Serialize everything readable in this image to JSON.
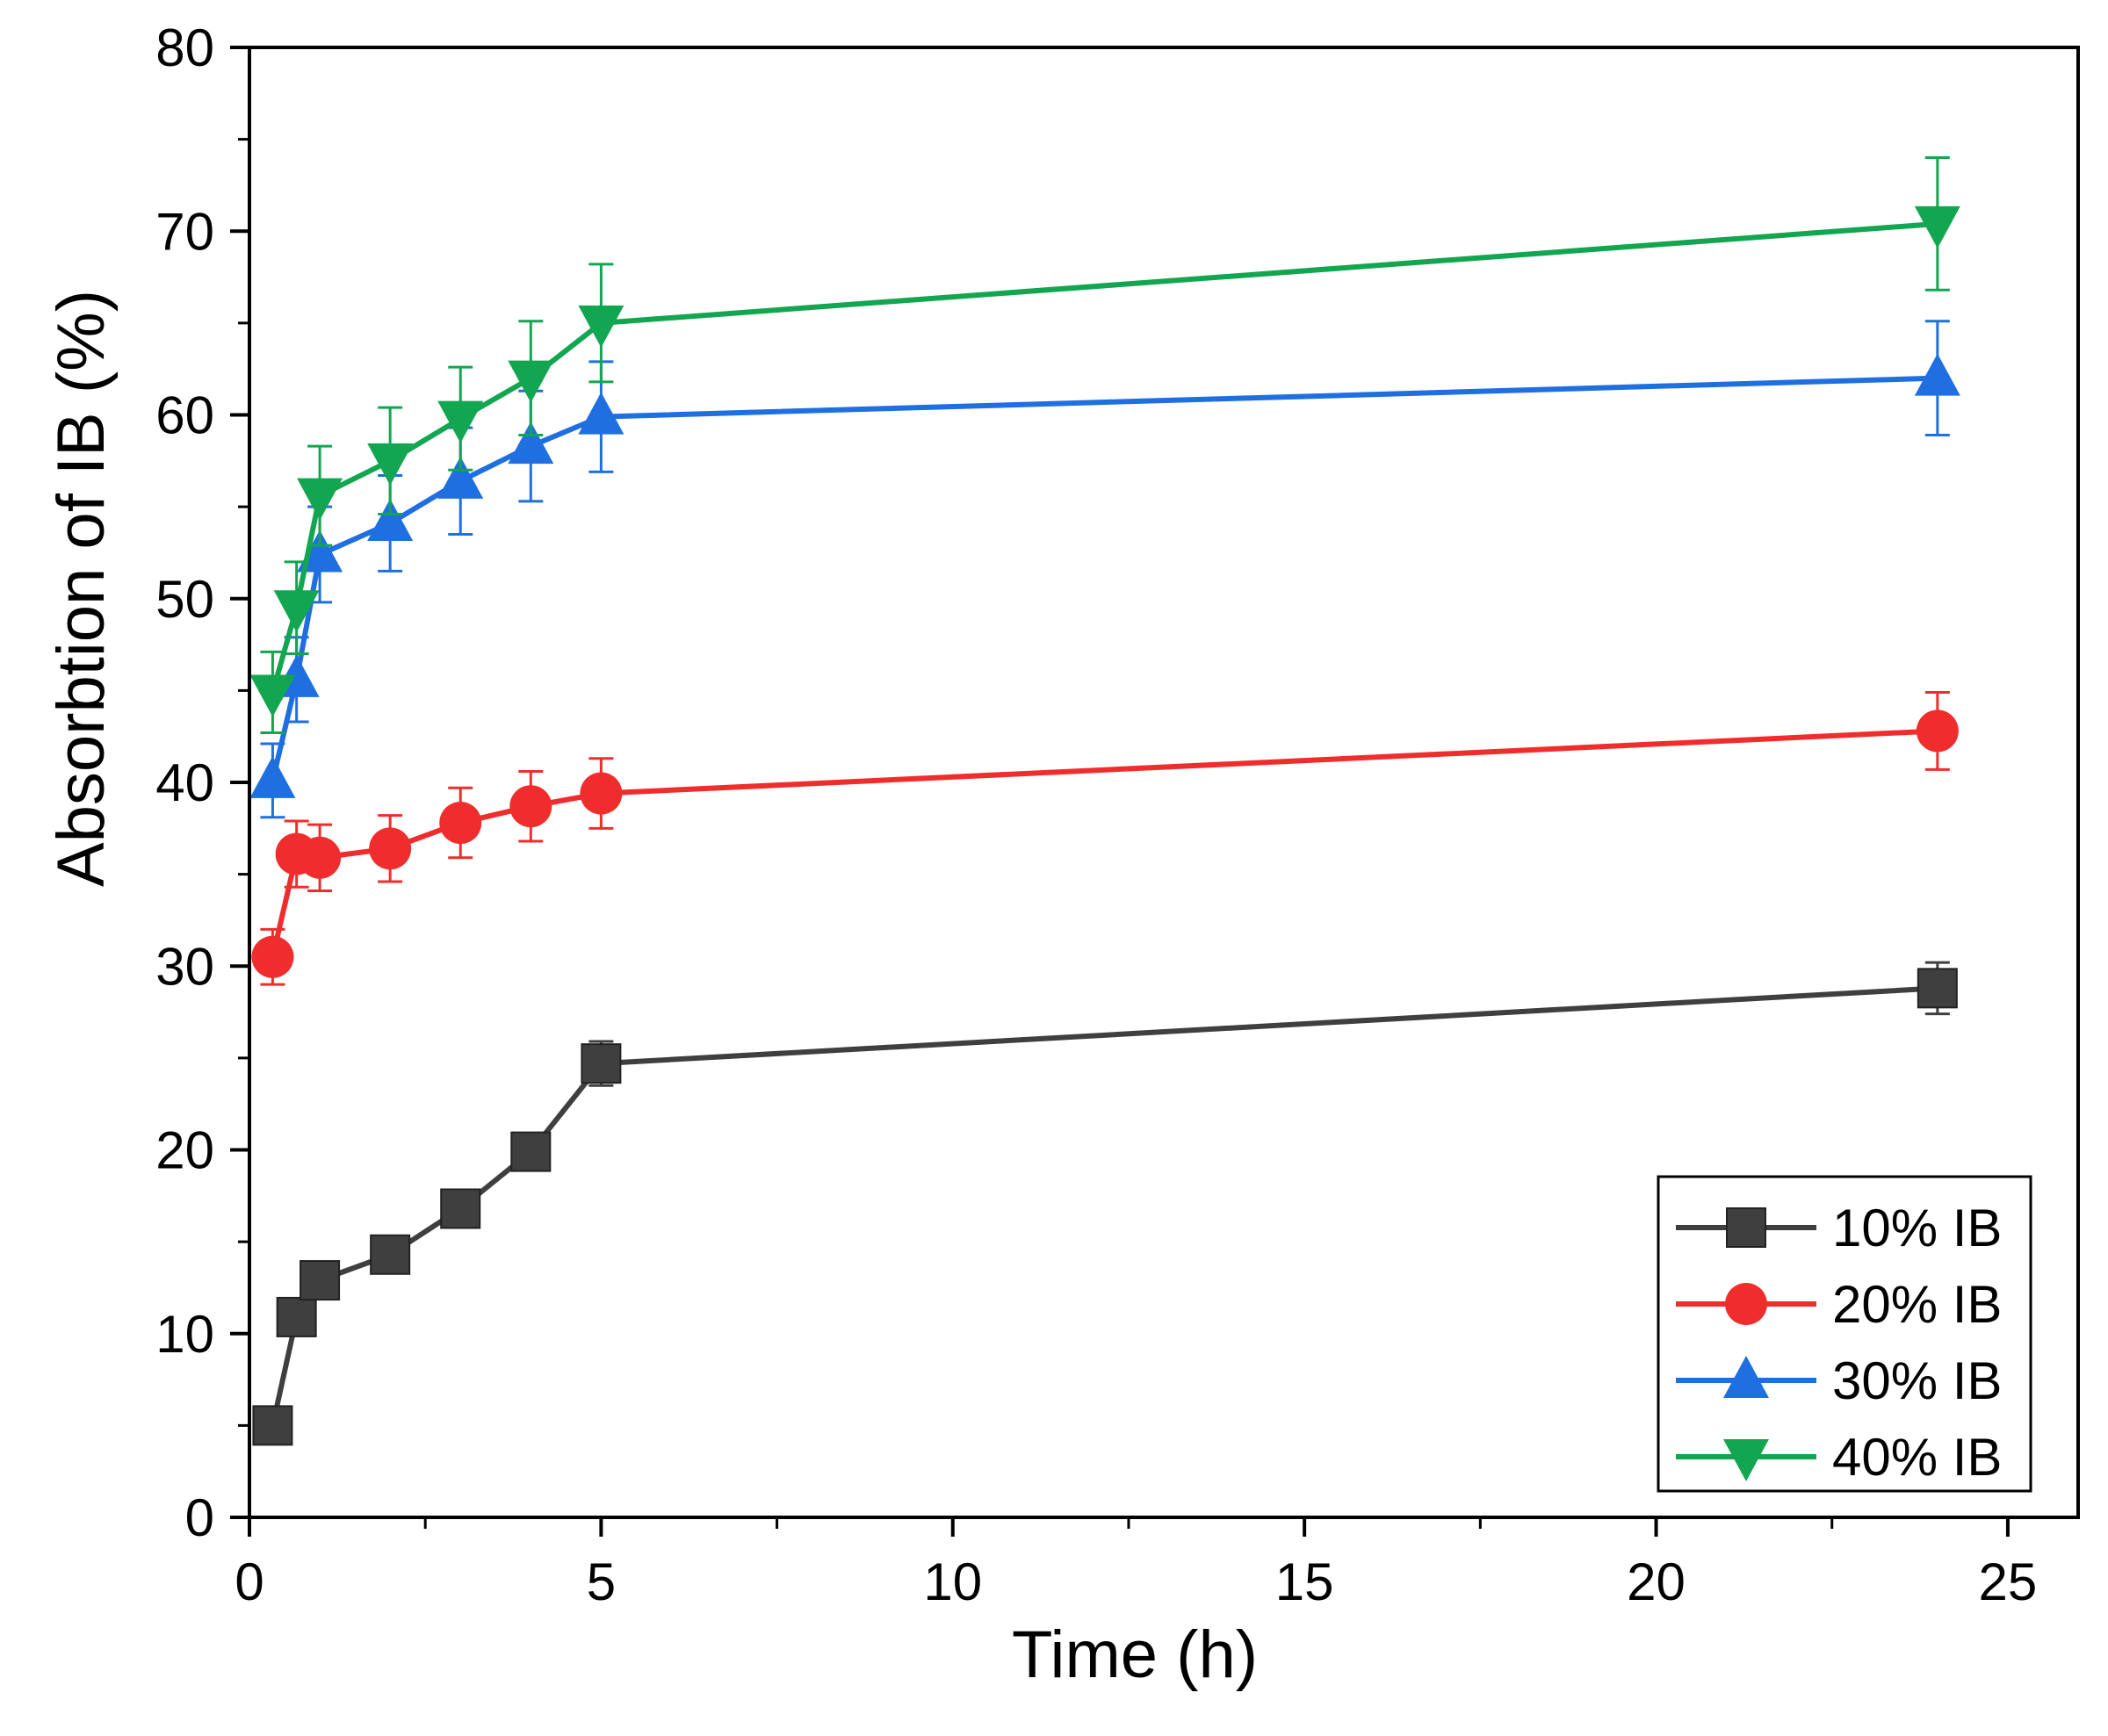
{
  "chart_data": {
    "type": "line",
    "title": "",
    "xlabel": "Time (h)",
    "ylabel": "Absorbtion of IB (%)",
    "xlim": [
      0,
      26
    ],
    "ylim": [
      0,
      80
    ],
    "x_ticks": [
      0,
      5,
      10,
      15,
      20,
      25
    ],
    "x_tick_labels": [
      "0",
      "5",
      "10",
      "15",
      "20",
      "25"
    ],
    "y_ticks": [
      0,
      10,
      20,
      30,
      40,
      50,
      60,
      70,
      80
    ],
    "y_tick_labels": [
      "0",
      "10",
      "20",
      "30",
      "40",
      "50",
      "60",
      "70",
      "80"
    ],
    "legend_position": "bottom-right",
    "grid": false,
    "x": [
      0.33,
      0.67,
      1,
      2,
      3,
      4,
      5,
      24
    ],
    "series": [
      {
        "name": "10% IB",
        "color": "#3f3f3f",
        "marker": "square",
        "values": [
          5.0,
          10.9,
          12.9,
          14.3,
          16.8,
          19.9,
          24.7,
          28.8
        ],
        "errors": [
          0.0,
          0.5,
          0.5,
          0.5,
          0.5,
          0.8,
          1.2,
          1.4
        ]
      },
      {
        "name": "20% IB",
        "color": "#f02d2d",
        "marker": "circle",
        "values": [
          30.5,
          36.1,
          35.9,
          36.4,
          37.8,
          38.7,
          39.4,
          42.8
        ],
        "errors": [
          1.5,
          1.8,
          1.8,
          1.8,
          1.9,
          1.9,
          1.9,
          2.1
        ]
      },
      {
        "name": "30% IB",
        "color": "#1f6fe0",
        "marker": "triangle-up",
        "values": [
          40.1,
          45.6,
          52.4,
          54.1,
          56.4,
          58.3,
          59.9,
          62.0
        ],
        "errors": [
          2.0,
          2.3,
          2.6,
          2.6,
          2.9,
          3.0,
          3.0,
          3.1
        ]
      },
      {
        "name": "40% IB",
        "color": "#13a650",
        "marker": "triangle-down",
        "values": [
          44.9,
          49.5,
          55.6,
          57.5,
          59.8,
          62.0,
          65.0,
          70.4
        ],
        "errors": [
          2.2,
          2.5,
          2.7,
          2.9,
          2.8,
          3.1,
          3.2,
          3.6
        ]
      }
    ]
  }
}
